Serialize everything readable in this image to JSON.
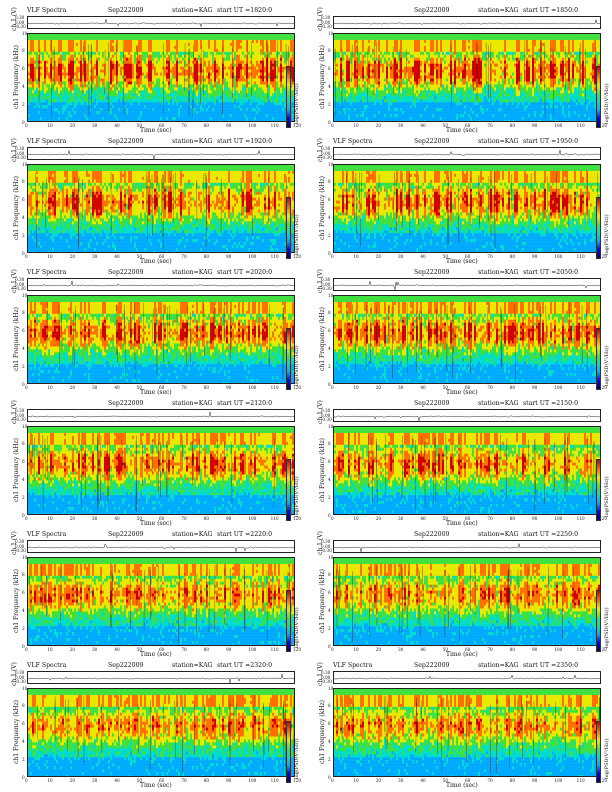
{
  "panels": [
    {
      "title": "VLF Spectra",
      "date": "Sep222009",
      "station": "station=KAG",
      "start": "start  UT  =1820:0",
      "seed": 3
    },
    {
      "title": "",
      "date": "Sep222009",
      "station": "station=KAG",
      "start": "start  UT  =1850:0",
      "seed": 7
    },
    {
      "title": "VLF Spectra",
      "date": "Sep222009",
      "station": "station=KAG",
      "start": "start  UT  =1920:0",
      "seed": 11
    },
    {
      "title": "VLF Spectra",
      "date": "Sep222009",
      "station": "station=KAG",
      "start": "start  UT  =1950:0",
      "seed": 13
    },
    {
      "title": "VLF Spectra",
      "date": "Sep222009",
      "station": "station=KAG",
      "start": "start  UT  =2020:0",
      "seed": 17
    },
    {
      "title": "",
      "date": "Sep222009",
      "station": "station=KAG",
      "start": "start  UT  =2050:0",
      "seed": 19
    },
    {
      "title": "",
      "date": "Sep222009",
      "station": "station=KAG",
      "start": "start  UT  =2120:0",
      "seed": 23
    },
    {
      "title": "",
      "date": "Sep222009",
      "station": "station=KAG",
      "start": "start  UT  =2150:0",
      "seed": 29
    },
    {
      "title": "VLF Spectra",
      "date": "Sep222009",
      "station": "station=KAG",
      "start": "start  UT  =2220:0",
      "seed": 31
    },
    {
      "title": "",
      "date": "Sep222009",
      "station": "station=KAG",
      "start": "start  UT  =2250:0",
      "seed": 37
    },
    {
      "title": "VLF Spectra",
      "date": "Sep222009",
      "station": "station=KAG",
      "start": "start  UT  =2320:0",
      "seed": 41
    },
    {
      "title": "VLF Spectra",
      "date": "Sep222009",
      "station": "station=KAG",
      "start": "start  UT  =2350:0",
      "seed": 43
    }
  ],
  "labels": {
    "wave_ylabel": "ch 1 (V)",
    "spec_ylabel": "ch1 Frequency (kHz)",
    "xlabel": "Time (sec)",
    "cbar_label": "log(PSD(V²/Hz))"
  },
  "chart_data": {
    "type": "heatmap",
    "description_axes": {
      "x": "Time (sec)",
      "y": "Frequency (kHz)"
    },
    "xlim": [
      0,
      120
    ],
    "ylim_freq": [
      0,
      10
    ],
    "ylim_wave": [
      -0.3,
      0.3
    ],
    "x_ticks": [
      0,
      10,
      20,
      30,
      40,
      50,
      60,
      70,
      80,
      90,
      100,
      110,
      120
    ],
    "freq_ticks": [
      0,
      2,
      4,
      6,
      8,
      10
    ],
    "wave_ticks": [
      "0.30",
      "0.00",
      "-0.30"
    ],
    "colors": {
      "low": "#0000ff",
      "mid": "#40e040",
      "high": "#d00000"
    }
  }
}
